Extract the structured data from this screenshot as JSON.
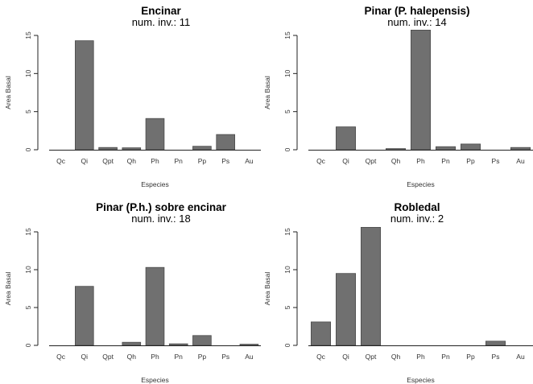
{
  "chart_data": [
    {
      "type": "bar",
      "title": "Encinar",
      "subtitle": "num. inv.:  11",
      "xlabel": "Especies",
      "ylabel": "Area Basal",
      "categories": [
        "Qc",
        "Qi",
        "Qpt",
        "Qh",
        "Ph",
        "Pn",
        "Pp",
        "Ps",
        "Au"
      ],
      "values": [
        0,
        14.3,
        0.3,
        0.25,
        4.1,
        0,
        0.45,
        2.0,
        0
      ],
      "ylim": [
        0,
        15
      ],
      "yticks": [
        0,
        5,
        10,
        15
      ],
      "grid": false
    },
    {
      "type": "bar",
      "title": "Pinar (P. halepensis)",
      "subtitle": "num. inv.:  14",
      "xlabel": "Especies",
      "ylabel": "Area Basal",
      "categories": [
        "Qc",
        "Qi",
        "Qpt",
        "Qh",
        "Ph",
        "Pn",
        "Pp",
        "Ps",
        "Au"
      ],
      "values": [
        0,
        3.0,
        0,
        0.15,
        15.7,
        0.4,
        0.75,
        0,
        0.3
      ],
      "ylim": [
        0,
        15
      ],
      "yticks": [
        0,
        5,
        10,
        15
      ],
      "grid": false
    },
    {
      "type": "bar",
      "title": "Pinar (P.h.) sobre encinar",
      "subtitle": "num. inv.:  18",
      "xlabel": "Especies",
      "ylabel": "Area Basal",
      "categories": [
        "Qc",
        "Qi",
        "Qpt",
        "Qh",
        "Ph",
        "Pn",
        "Pp",
        "Ps",
        "Au"
      ],
      "values": [
        0,
        7.8,
        0,
        0.4,
        10.3,
        0.2,
        1.3,
        0,
        0.15
      ],
      "ylim": [
        0,
        15
      ],
      "yticks": [
        0,
        5,
        10,
        15
      ],
      "grid": false
    },
    {
      "type": "bar",
      "title": "Robledal",
      "subtitle": "num. inv.:  2",
      "xlabel": "Especies",
      "ylabel": "Area Basal",
      "categories": [
        "Qc",
        "Qi",
        "Qpt",
        "Qh",
        "Ph",
        "Pn",
        "Pp",
        "Ps",
        "Au"
      ],
      "values": [
        3.1,
        9.5,
        15.6,
        0,
        0,
        0,
        0,
        0.55,
        0
      ],
      "ylim": [
        0,
        15
      ],
      "yticks": [
        0,
        5,
        10,
        15
      ],
      "grid": false
    }
  ],
  "colors": {
    "bar_fill": "#707070",
    "bar_stroke": "#4a4a4a",
    "axis": "#222222"
  }
}
